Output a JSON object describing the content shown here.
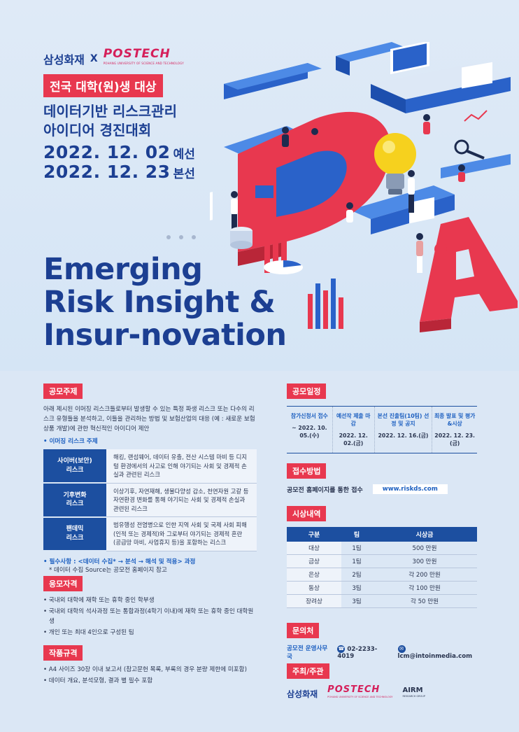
{
  "hero": {
    "logo_samsung": "삼성화재",
    "logo_x": "X",
    "logo_postech": "POSTECH",
    "logo_postech_sub": "POHANG UNIVERSITY OF SCIENCE AND TECHNOLOGY",
    "target_badge": "전국 대학(원)생 대상",
    "title_line1": "데이터기반 리스크관리",
    "title_line2": "아이디어 경진대회",
    "date1": "2022. 12. 02",
    "date1_label": "예선",
    "date2": "2022. 12. 23",
    "date2_label": "본선",
    "headline_line1": "Emerging",
    "headline_line2": "Risk Insight &",
    "headline_line3": "Insur-novation"
  },
  "theme": {
    "heading": "공모주제",
    "description": "아래 제시된 이머징 리스크들로부터 발생할 수 있는 특정 파생 리스크 또는 다수의 리스크 유형들을 분석하고, 이들을 관리하는 방법 및 보험산업의 대응 (예 : 새로운 보험상품 개발)에 관한 혁신적인 아이디어 제안",
    "risk_label": "• 이머징 리스크 주제",
    "risks": [
      {
        "name1": "사이버(보안)",
        "name2": "리스크",
        "desc": "해킹, 랜섬웨어, 데이터 유출, 전산 시스템 마비 등 디지털 환경에서의 사고로 인해 야기되는 사회 및 경제적 손실과 관련된 리스크"
      },
      {
        "name1": "기후변화",
        "name2": "리스크",
        "desc": "이상기후, 자연재해, 생물다양성 감소, 천연자원 고갈 등 자연환경 변화를 통해 야기되는 사회 및 경제적 손실과 관련된 리스크"
      },
      {
        "name1": "팬데믹",
        "name2": "리스크",
        "desc": "범유행성 전염병으로 인한 지역 사회 및 국제 사회 피해 (인적 또는 경제적)와 그로부터 야기되는 경제적 혼란 (공급망 마비, 사업휴지 등)을 포함하는 리스크"
      }
    ],
    "required": "• 필수사항 : <데이터 수집* → 분석 → 해석 및 적용> 과정",
    "required_note": "* 데이터 수집 Source는 공모전 홈페이지 참고"
  },
  "eligibility": {
    "heading": "응모자격",
    "items": [
      "• 국내외 대학에 재학 또는 휴학 중인 학부생",
      "• 국내외 대학의 석사과정 또는 통합과정(4학기 이내)에 재학 또는 휴학 중인 대학원생",
      "• 개인 또는 최대 4인으로 구성된 팀"
    ]
  },
  "format": {
    "heading": "작품규격",
    "items": [
      "• A4 사이즈 30장 이내 보고서 (참고문헌 목록, 부록의 경우 분량 제한에 미포함)",
      "• 데이터 개요, 분석모형, 결과 별 필수 포함"
    ]
  },
  "schedule": {
    "heading": "공모일정",
    "steps": [
      {
        "title": "참가신청서 접수",
        "date": "~ 2022. 10. 05.(수)"
      },
      {
        "title": "예선작 제출 마감",
        "date": "2022. 12. 02.(금)"
      },
      {
        "title": "본선 진출팀(10팀) 선정 및 공지",
        "date": "2022. 12. 16.(금)"
      },
      {
        "title": "최종 발표 및 평가&시상",
        "date": "2022. 12. 23.(금)"
      }
    ]
  },
  "apply": {
    "heading": "접수방법",
    "text": "공모전 홈페이지를 통한 접수",
    "url": "www.riskds.com"
  },
  "prizes": {
    "heading": "시상내역",
    "columns": [
      "구분",
      "팀",
      "시상금"
    ],
    "rows": [
      [
        "대상",
        "1팀",
        "500 만원"
      ],
      [
        "금상",
        "1팀",
        "300 만원"
      ],
      [
        "은상",
        "2팀",
        "각 200 만원"
      ],
      [
        "동상",
        "3팀",
        "각 100 만원"
      ],
      [
        "장려상",
        "3팀",
        "각 50 만원"
      ]
    ]
  },
  "contact": {
    "heading": "문의처",
    "org": "공모전 운영사무국",
    "phone": "02-2233-4019",
    "email": "lcm@intoinmedia.com"
  },
  "hosts": {
    "heading": "주최/주관",
    "samsung": "삼성화재",
    "postech": "POSTECH",
    "postech_sub": "POHANG UNIVERSITY OF SCIENCE AND TECHNOLOGY",
    "airm": "AIRM",
    "airm_sub": "RESEARCH GROUP"
  },
  "colors": {
    "navy": "#1c3f92",
    "accent_red": "#e8384f",
    "table_blue": "#1c4fa0",
    "background": "#d9e8f6"
  }
}
